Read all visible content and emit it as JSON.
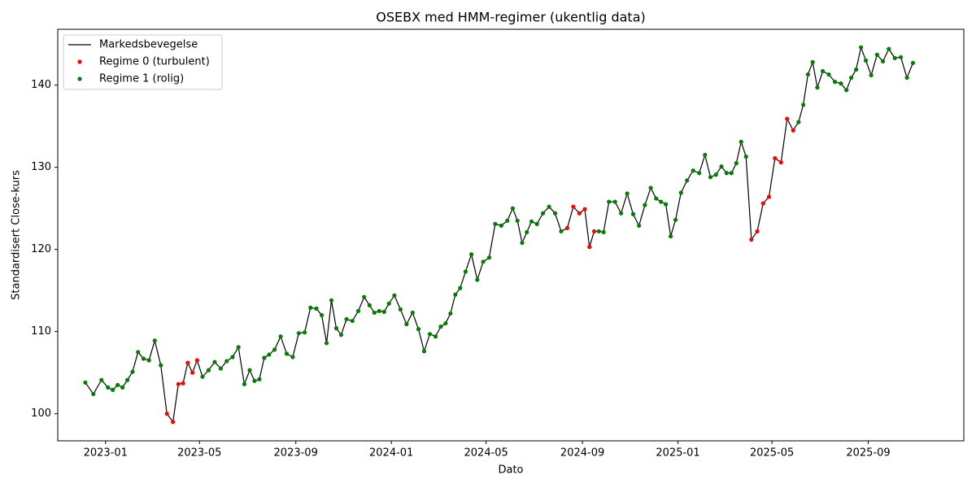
{
  "chart_data": {
    "type": "line",
    "title": "OSEBX med HMM-regimer (ukentlig data)",
    "x_label": "Dato",
    "y_label": "Standardisert Close-kurs",
    "legend": "upper left",
    "grid": false,
    "xlim": [
      "2022-11",
      "2025-12"
    ],
    "xticks": [
      "2023-01",
      "2023-05",
      "2023-09",
      "2024-01",
      "2024-05",
      "2024-09",
      "2025-01",
      "2025-05",
      "2025-09"
    ],
    "ylim": [
      96.7,
      146.8
    ],
    "yticks": [
      100,
      110,
      120,
      130,
      140
    ],
    "x": [
      "2022-12",
      "2022-12",
      "2022-12",
      "2023-01",
      "2023-01",
      "2023-01",
      "2023-01",
      "2023-01",
      "2023-02",
      "2023-02",
      "2023-02",
      "2023-02",
      "2023-03",
      "2023-03",
      "2023-03",
      "2023-03",
      "2023-04",
      "2023-04",
      "2023-04",
      "2023-04",
      "2023-04",
      "2023-05",
      "2023-05",
      "2023-05",
      "2023-05",
      "2023-06",
      "2023-06",
      "2023-06",
      "2023-06",
      "2023-07",
      "2023-07",
      "2023-07",
      "2023-07",
      "2023-07",
      "2023-08",
      "2023-08",
      "2023-08",
      "2023-08",
      "2023-09",
      "2023-09",
      "2023-09",
      "2023-09",
      "2023-10",
      "2023-10",
      "2023-10",
      "2023-10",
      "2023-10",
      "2023-11",
      "2023-11",
      "2023-11",
      "2023-11",
      "2023-12",
      "2023-12",
      "2023-12",
      "2023-12",
      "2023-12",
      "2024-01",
      "2024-01",
      "2024-01",
      "2024-01",
      "2024-02",
      "2024-02",
      "2024-02",
      "2024-02",
      "2024-03",
      "2024-03",
      "2024-03",
      "2024-03",
      "2024-03",
      "2024-04",
      "2024-04",
      "2024-04",
      "2024-04",
      "2024-05",
      "2024-05",
      "2024-05",
      "2024-05",
      "2024-06",
      "2024-06",
      "2024-06",
      "2024-06",
      "2024-06",
      "2024-07",
      "2024-07",
      "2024-07",
      "2024-07",
      "2024-08",
      "2024-08",
      "2024-08",
      "2024-08",
      "2024-09",
      "2024-09",
      "2024-09",
      "2024-09",
      "2024-09",
      "2024-10",
      "2024-10",
      "2024-10",
      "2024-10",
      "2024-11",
      "2024-11",
      "2024-11",
      "2024-11",
      "2024-12",
      "2024-12",
      "2024-12",
      "2024-12",
      "2024-12",
      "2025-01",
      "2025-01",
      "2025-01",
      "2025-01",
      "2025-02",
      "2025-02",
      "2025-02",
      "2025-02",
      "2025-03",
      "2025-03",
      "2025-03",
      "2025-03",
      "2025-03",
      "2025-04",
      "2025-04",
      "2025-04",
      "2025-04",
      "2025-05",
      "2025-05",
      "2025-05",
      "2025-05",
      "2025-06",
      "2025-06",
      "2025-06",
      "2025-06",
      "2025-06",
      "2025-07",
      "2025-07",
      "2025-07",
      "2025-07",
      "2025-08",
      "2025-08",
      "2025-08",
      "2025-08",
      "2025-08",
      "2025-09",
      "2025-09",
      "2025-09",
      "2025-09",
      "2025-10",
      "2025-10",
      "2025-10",
      "2025-10"
    ],
    "series": [
      {
        "name": "Markedsbevegelse",
        "color": "#000000",
        "kind": "line",
        "values": [
          103.8,
          102.4,
          104.1,
          103.2,
          102.9,
          103.5,
          103.2,
          104.1,
          105.1,
          107.5,
          106.7,
          106.5,
          108.9,
          105.9,
          100.0,
          99.0,
          103.6,
          103.7,
          106.2,
          105.0,
          106.5,
          104.5,
          105.3,
          106.3,
          105.5,
          106.4,
          106.9,
          108.1,
          103.6,
          105.3,
          104.0,
          104.2,
          106.8,
          107.2,
          107.8,
          109.4,
          107.3,
          106.9,
          109.8,
          109.9,
          112.9,
          112.8,
          112.0,
          108.6,
          113.8,
          110.4,
          109.6,
          111.5,
          111.3,
          112.5,
          114.2,
          113.2,
          112.3,
          112.5,
          112.4,
          113.4,
          114.4,
          112.7,
          110.9,
          112.3,
          110.3,
          107.6,
          109.7,
          109.4,
          110.6,
          111.0,
          112.2,
          114.5,
          115.3,
          117.3,
          119.4,
          116.3,
          118.5,
          119.0,
          123.1,
          122.9,
          123.5,
          125.0,
          123.5,
          120.8,
          122.1,
          123.4,
          123.1,
          124.4,
          125.2,
          124.4,
          122.2,
          122.6,
          125.2,
          124.4,
          124.9,
          120.3,
          122.2,
          122.2,
          122.1,
          125.8,
          125.8,
          124.4,
          126.8,
          124.3,
          122.9,
          125.4,
          127.5,
          126.2,
          125.8,
          125.5,
          121.6,
          123.6,
          126.9,
          128.4,
          129.6,
          129.3,
          131.5,
          128.8,
          129.1,
          130.1,
          129.3,
          129.3,
          130.5,
          133.1,
          131.3,
          121.2,
          122.2,
          125.6,
          126.4,
          131.1,
          130.6,
          135.9,
          134.5,
          135.5,
          137.6,
          141.3,
          142.8,
          139.7,
          141.7,
          141.3,
          140.4,
          140.2,
          139.4,
          140.9,
          141.9,
          144.6,
          143.0,
          141.2,
          143.7,
          142.9,
          144.4,
          143.3,
          143.4,
          140.9,
          142.7
        ]
      },
      {
        "name": "Regime 0 (turbulent)",
        "color": "#ff0000",
        "kind": "scatter",
        "values": [
          null,
          null,
          null,
          null,
          null,
          null,
          null,
          null,
          null,
          null,
          null,
          null,
          null,
          null,
          100.0,
          99.0,
          103.6,
          103.7,
          106.2,
          105.0,
          106.5,
          null,
          null,
          null,
          null,
          null,
          null,
          null,
          null,
          null,
          null,
          null,
          null,
          null,
          null,
          null,
          null,
          null,
          null,
          null,
          null,
          null,
          null,
          null,
          null,
          null,
          null,
          null,
          null,
          null,
          null,
          null,
          null,
          null,
          null,
          null,
          null,
          null,
          null,
          null,
          null,
          null,
          null,
          null,
          null,
          null,
          null,
          null,
          null,
          null,
          null,
          null,
          null,
          null,
          null,
          null,
          null,
          null,
          null,
          null,
          null,
          null,
          null,
          null,
          null,
          null,
          null,
          122.6,
          125.2,
          124.4,
          124.9,
          120.3,
          122.2,
          null,
          null,
          null,
          null,
          null,
          null,
          null,
          null,
          null,
          null,
          null,
          null,
          null,
          null,
          null,
          null,
          null,
          null,
          null,
          null,
          null,
          null,
          null,
          null,
          null,
          null,
          null,
          null,
          121.2,
          122.2,
          125.6,
          126.4,
          131.1,
          130.6,
          135.9,
          134.5,
          null,
          null,
          null,
          null,
          null,
          null,
          null,
          null,
          null,
          null,
          null,
          null,
          null,
          null,
          null,
          null,
          null,
          null,
          null,
          null,
          null,
          null
        ]
      },
      {
        "name": "Regime 1 (rolig)",
        "color": "#008000",
        "kind": "scatter",
        "values": [
          103.8,
          102.4,
          104.1,
          103.2,
          102.9,
          103.5,
          103.2,
          104.1,
          105.1,
          107.5,
          106.7,
          106.5,
          108.9,
          105.9,
          null,
          null,
          null,
          null,
          null,
          null,
          null,
          104.5,
          105.3,
          106.3,
          105.5,
          106.4,
          106.9,
          108.1,
          103.6,
          105.3,
          104.0,
          104.2,
          106.8,
          107.2,
          107.8,
          109.4,
          107.3,
          106.9,
          109.8,
          109.9,
          112.9,
          112.8,
          112.0,
          108.6,
          113.8,
          110.4,
          109.6,
          111.5,
          111.3,
          112.5,
          114.2,
          113.2,
          112.3,
          112.5,
          112.4,
          113.4,
          114.4,
          112.7,
          110.9,
          112.3,
          110.3,
          107.6,
          109.7,
          109.4,
          110.6,
          111.0,
          112.2,
          114.5,
          115.3,
          117.3,
          119.4,
          116.3,
          118.5,
          119.0,
          123.1,
          122.9,
          123.5,
          125.0,
          123.5,
          120.8,
          122.1,
          123.4,
          123.1,
          124.4,
          125.2,
          124.4,
          122.2,
          null,
          null,
          null,
          null,
          null,
          null,
          122.2,
          122.1,
          125.8,
          125.8,
          124.4,
          126.8,
          124.3,
          122.9,
          125.4,
          127.5,
          126.2,
          125.8,
          125.5,
          121.6,
          123.6,
          126.9,
          128.4,
          129.6,
          129.3,
          131.5,
          128.8,
          129.1,
          130.1,
          129.3,
          129.3,
          130.5,
          133.1,
          131.3,
          null,
          null,
          null,
          null,
          null,
          null,
          null,
          null,
          135.5,
          137.6,
          141.3,
          142.8,
          139.7,
          141.7,
          141.3,
          140.4,
          140.2,
          139.4,
          140.9,
          141.9,
          144.6,
          143.0,
          141.2,
          143.7,
          142.9,
          144.4,
          143.3,
          143.4,
          140.9,
          142.7
        ]
      }
    ]
  }
}
